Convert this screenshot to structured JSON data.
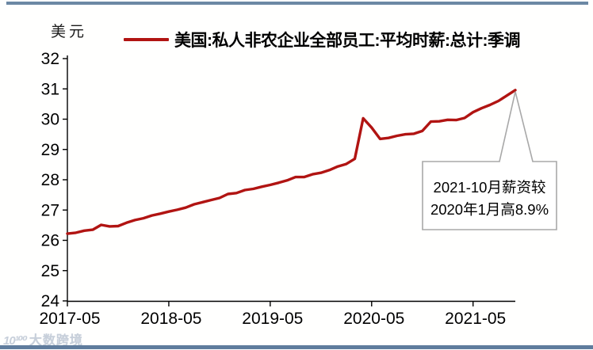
{
  "page": {
    "background": "#fffffe",
    "top_bar_color": "#6c88a4",
    "bottom_bar_color": "#5f7c9d",
    "axis_color": "#000000",
    "text_color": "#000000"
  },
  "unit_label": "美元",
  "legend": {
    "label": "美国:私人非农企业全部员工:平均时薪:总计:季调",
    "line_color": "#b11412"
  },
  "annotation": {
    "lines": [
      "2021-10月薪资较",
      "2020年1月高8.9%"
    ],
    "border_color": "#a8a8a8",
    "fill": "#ffffff"
  },
  "watermark": {
    "logo": "10¹⁰⁰",
    "label": "大数跨境"
  },
  "chart_data": {
    "type": "line",
    "title": "",
    "ylabel": "美元",
    "series_name": "美国:私人非农企业全部员工:平均时薪:总计:季调",
    "line_color": "#b11412",
    "grid": false,
    "legend_position": "top",
    "ylim": [
      24,
      32
    ],
    "yticks": [
      24,
      25,
      26,
      27,
      28,
      29,
      30,
      31,
      32
    ],
    "xticks": [
      {
        "label": "2017-05",
        "index": 0
      },
      {
        "label": "2018-05",
        "index": 12
      },
      {
        "label": "2019-05",
        "index": 24
      },
      {
        "label": "2020-05",
        "index": 36
      },
      {
        "label": "2021-05",
        "index": 48
      }
    ],
    "x": [
      "2017-05",
      "2017-06",
      "2017-07",
      "2017-08",
      "2017-09",
      "2017-10",
      "2017-11",
      "2017-12",
      "2018-01",
      "2018-02",
      "2018-03",
      "2018-04",
      "2018-05",
      "2018-06",
      "2018-07",
      "2018-08",
      "2018-09",
      "2018-10",
      "2018-11",
      "2018-12",
      "2019-01",
      "2019-02",
      "2019-03",
      "2019-04",
      "2019-05",
      "2019-06",
      "2019-07",
      "2019-08",
      "2019-09",
      "2019-10",
      "2019-11",
      "2019-12",
      "2020-01",
      "2020-02",
      "2020-03",
      "2020-04",
      "2020-05",
      "2020-06",
      "2020-07",
      "2020-08",
      "2020-09",
      "2020-10",
      "2020-11",
      "2020-12",
      "2021-01",
      "2021-02",
      "2021-03",
      "2021-04",
      "2021-05",
      "2021-06",
      "2021-07",
      "2021-08",
      "2021-09",
      "2021-10"
    ],
    "values": [
      26.22,
      26.25,
      26.32,
      26.35,
      26.51,
      26.46,
      26.47,
      26.58,
      26.67,
      26.73,
      26.82,
      26.88,
      26.95,
      27.01,
      27.08,
      27.19,
      27.26,
      27.33,
      27.4,
      27.53,
      27.56,
      27.66,
      27.7,
      27.77,
      27.83,
      27.9,
      27.98,
      28.09,
      28.09,
      28.18,
      28.23,
      28.32,
      28.44,
      28.52,
      28.69,
      30.03,
      29.72,
      29.35,
      29.38,
      29.45,
      29.5,
      29.52,
      29.61,
      29.92,
      29.93,
      29.98,
      29.97,
      30.04,
      30.23,
      30.36,
      30.47,
      30.6,
      30.78,
      30.96
    ]
  }
}
